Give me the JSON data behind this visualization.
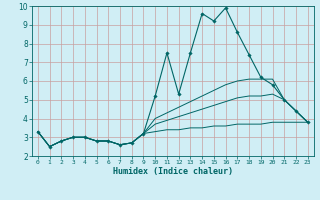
{
  "xlabel": "Humidex (Indice chaleur)",
  "ylabel": "",
  "xlim": [
    -0.5,
    23.5
  ],
  "ylim": [
    2,
    10
  ],
  "yticks": [
    2,
    3,
    4,
    5,
    6,
    7,
    8,
    9,
    10
  ],
  "xticks": [
    0,
    1,
    2,
    3,
    4,
    5,
    6,
    7,
    8,
    9,
    10,
    11,
    12,
    13,
    14,
    15,
    16,
    17,
    18,
    19,
    20,
    21,
    22,
    23
  ],
  "bg_color": "#d0eef5",
  "grid_color": "#c8a0a0",
  "line_color": "#006666",
  "line1_y": [
    3.3,
    2.5,
    2.8,
    3.0,
    3.0,
    2.8,
    2.8,
    2.6,
    2.7,
    3.2,
    5.2,
    7.5,
    5.3,
    7.5,
    9.6,
    9.2,
    9.9,
    8.6,
    7.4,
    6.2,
    5.8,
    5.0,
    4.4,
    3.8
  ],
  "line2_y": [
    3.3,
    2.5,
    2.8,
    3.0,
    3.0,
    2.8,
    2.8,
    2.6,
    2.7,
    3.2,
    4.0,
    4.3,
    4.6,
    4.9,
    5.2,
    5.5,
    5.8,
    6.0,
    6.1,
    6.1,
    6.1,
    5.0,
    4.4,
    3.8
  ],
  "line3_y": [
    3.3,
    2.5,
    2.8,
    3.0,
    3.0,
    2.8,
    2.8,
    2.6,
    2.7,
    3.2,
    3.7,
    3.9,
    4.1,
    4.3,
    4.5,
    4.7,
    4.9,
    5.1,
    5.2,
    5.2,
    5.3,
    5.0,
    4.4,
    3.8
  ],
  "line4_y": [
    3.3,
    2.5,
    2.8,
    3.0,
    3.0,
    2.8,
    2.8,
    2.6,
    2.7,
    3.2,
    3.3,
    3.4,
    3.4,
    3.5,
    3.5,
    3.6,
    3.6,
    3.7,
    3.7,
    3.7,
    3.8,
    3.8,
    3.8,
    3.8
  ]
}
